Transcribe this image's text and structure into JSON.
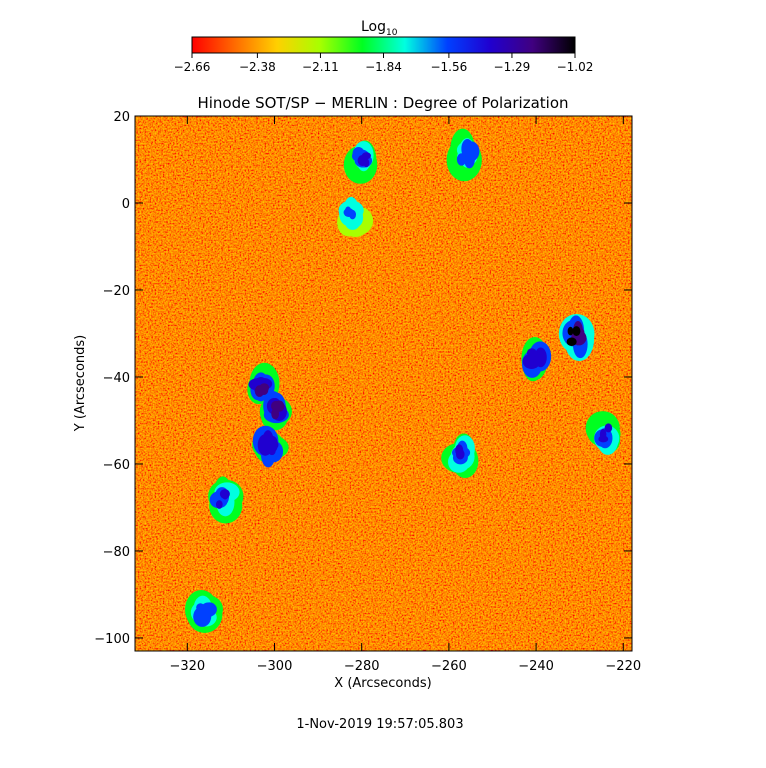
{
  "chart_data": {
    "type": "heatmap",
    "title": "Hinode SOT/SP − MERLIN : Degree of Polarization",
    "xlabel": "X (Arcseconds)",
    "ylabel": "Y (Arcseconds)",
    "xlim": [
      -332,
      -218
    ],
    "ylim": [
      -103,
      20
    ],
    "x_ticks": [
      -320,
      -300,
      -280,
      -260,
      -240,
      -220
    ],
    "x_tick_labels": [
      "−320",
      "−300",
      "−280",
      "−260",
      "−240",
      "−220"
    ],
    "y_ticks": [
      20,
      0,
      -20,
      -40,
      -60,
      -80,
      -100
    ],
    "y_tick_labels": [
      "20",
      "0",
      "−20",
      "−40",
      "−60",
      "−80",
      "−100"
    ],
    "colorbar": {
      "label": "Log",
      "label_subscript": "10",
      "scale": "log10",
      "range": [
        -2.66,
        -1.02
      ],
      "ticks": [
        -2.66,
        -2.38,
        -2.11,
        -1.84,
        -1.56,
        -1.29,
        -1.02
      ],
      "tick_labels": [
        "−2.66",
        "−2.38",
        "−2.11",
        "−1.84",
        "−1.56",
        "−1.29",
        "−1.02"
      ],
      "colormap": [
        "#ff0000",
        "#ff6a00",
        "#ffd000",
        "#a8ff00",
        "#00ff20",
        "#00ffe0",
        "#0040ff",
        "#2000d0",
        "#400080",
        "#000000"
      ]
    },
    "background_level": -2.6,
    "high_polarization_regions": [
      {
        "x": -303,
        "y": -42,
        "value": -1.2
      },
      {
        "x": -300,
        "y": -48,
        "value": -1.25
      },
      {
        "x": -301,
        "y": -56,
        "value": -1.3
      },
      {
        "x": -280,
        "y": 10,
        "value": -1.35
      },
      {
        "x": -282,
        "y": -3,
        "value": -1.55
      },
      {
        "x": -231,
        "y": -31,
        "value": -1.1
      },
      {
        "x": -240,
        "y": -36,
        "value": -1.3
      },
      {
        "x": -256,
        "y": 11,
        "value": -1.5
      },
      {
        "x": -312,
        "y": -68,
        "value": -1.4
      },
      {
        "x": -257,
        "y": -58,
        "value": -1.45
      },
      {
        "x": -224,
        "y": -53,
        "value": -1.45
      },
      {
        "x": -316,
        "y": -94,
        "value": -1.5
      }
    ]
  },
  "footer": {
    "timestamp": "1-Nov-2019 19:57:05.803"
  }
}
